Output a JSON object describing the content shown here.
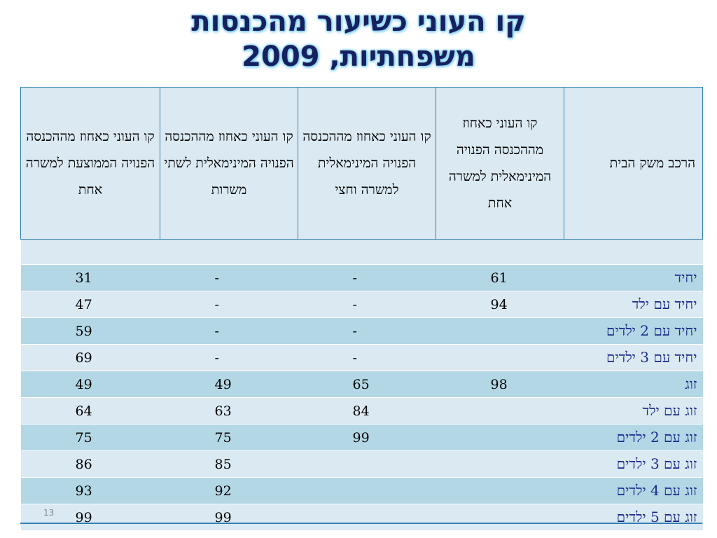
{
  "title_line1": "קו העוני כשיעור מהכנסות",
  "title_line2": "משפחתיות, 2009",
  "table": {
    "headers": [
      "הרכב משק הבית",
      "קו העוני כאחוז מההכנסה הפנויה המינימאלית למשרה אחת",
      "קו העוני כאחוז מההכנסה הפנויה המינימאלית למשרה וחצי",
      "קו העוני כאחוז מההכנסה הפנויה המינימאלית לשתי משרות",
      "קו העוני כאחוז מההכנסה הפנויה הממוצעת למשרה אחת"
    ],
    "rows": [
      [
        "יחיד",
        "61",
        "-",
        "-",
        "31"
      ],
      [
        "יחיד עם ילד",
        "94",
        "-",
        "-",
        "47"
      ],
      [
        "יחיד עם 2 ילדים",
        "",
        "-",
        "-",
        "59"
      ],
      [
        "יחיד עם 3 ילדים",
        "",
        "-",
        "-",
        "69"
      ],
      [
        "זוג",
        "98",
        "65",
        "49",
        "49"
      ],
      [
        "זוג עם ילד",
        "",
        "84",
        "63",
        "64"
      ],
      [
        "זוג עם 2 ילדים",
        "",
        "99",
        "75",
        "75"
      ],
      [
        "זוג עם 3 ילדים",
        "",
        "",
        "85",
        "86"
      ],
      [
        "זוג עם 4 ילדים",
        "",
        "",
        "92",
        "93"
      ],
      [
        "זוג עם 5 ילדים",
        "",
        "",
        "99",
        "99"
      ]
    ]
  },
  "slide_number": "13",
  "colors": {
    "title": "#16215e",
    "title_glow": "#7fd0f5",
    "border": "#2f7fb3",
    "row_dark": "#b3d7e5",
    "row_light": "#dbe9f2",
    "label_text": "#1a2a8a"
  }
}
